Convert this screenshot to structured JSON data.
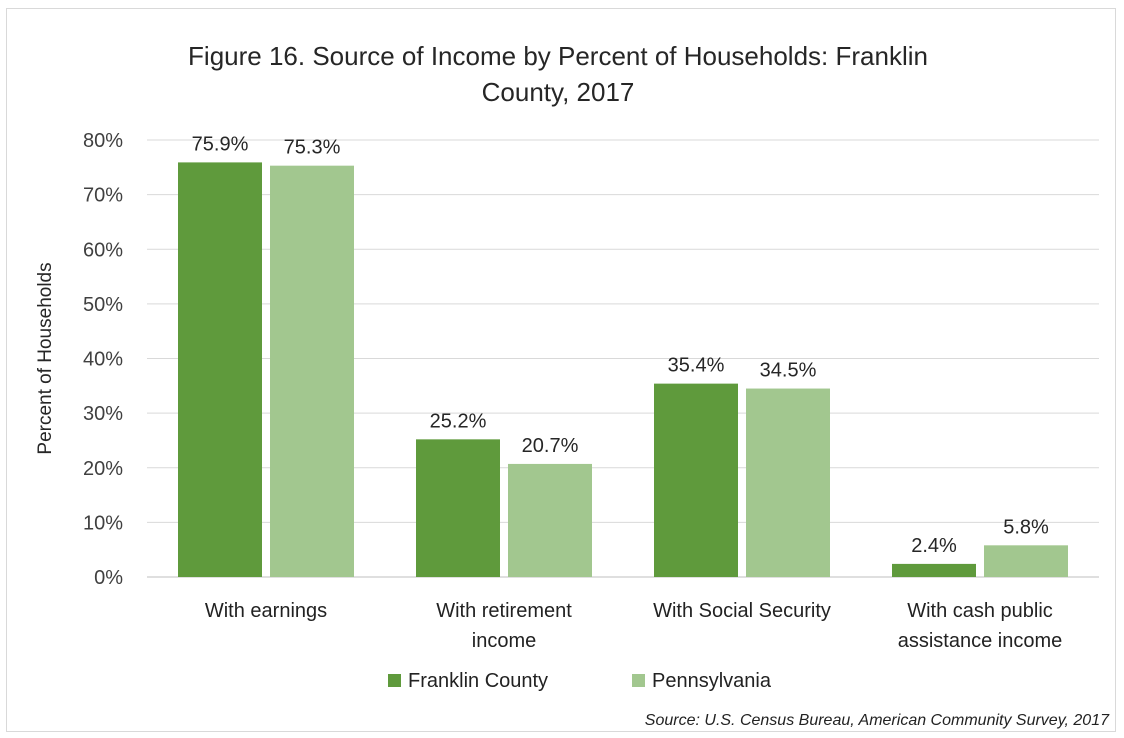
{
  "chart_data": {
    "type": "bar",
    "title": [
      "Figure 16. Source of Income by Percent of Households: Franklin",
      "County, 2017"
    ],
    "ylabel": "Percent of Households",
    "xlabel": "",
    "ylim": [
      0,
      80
    ],
    "yticks": [
      "0%",
      "10%",
      "20%",
      "30%",
      "40%",
      "50%",
      "60%",
      "70%",
      "80%"
    ],
    "categories": [
      [
        "With earnings"
      ],
      [
        "With retirement",
        "income"
      ],
      [
        "With Social Security"
      ],
      [
        "With cash public",
        "assistance income"
      ]
    ],
    "series": [
      {
        "name": "Franklin County",
        "color": "#5f9a3c",
        "values": [
          75.9,
          25.2,
          35.4,
          2.4
        ],
        "labels": [
          "75.9%",
          "25.2%",
          "35.4%",
          "2.4%"
        ]
      },
      {
        "name": "Pennsylvania",
        "color": "#a2c78f",
        "values": [
          75.3,
          20.7,
          34.5,
          5.8
        ],
        "labels": [
          "75.3%",
          "20.7%",
          "34.5%",
          "5.8%"
        ]
      }
    ],
    "grid": true,
    "legend_position": "bottom",
    "source": "Source: U.S. Census Bureau, American Community Survey, 2017"
  }
}
